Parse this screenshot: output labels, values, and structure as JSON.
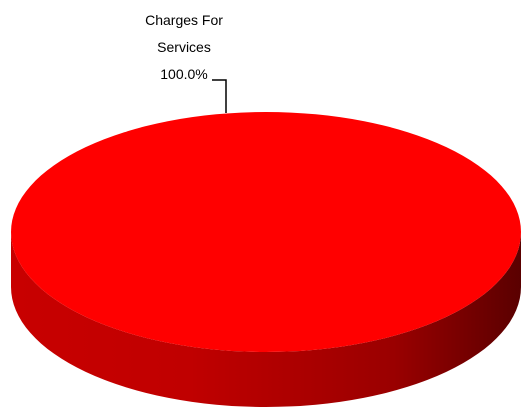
{
  "chart_data": {
    "type": "pie",
    "style": "3d",
    "categories": [
      "Charges For Services"
    ],
    "values": [
      100.0
    ],
    "data_labels": [
      "100.0%"
    ],
    "colors": [
      "#ff0000"
    ],
    "legend": "none",
    "title": ""
  }
}
